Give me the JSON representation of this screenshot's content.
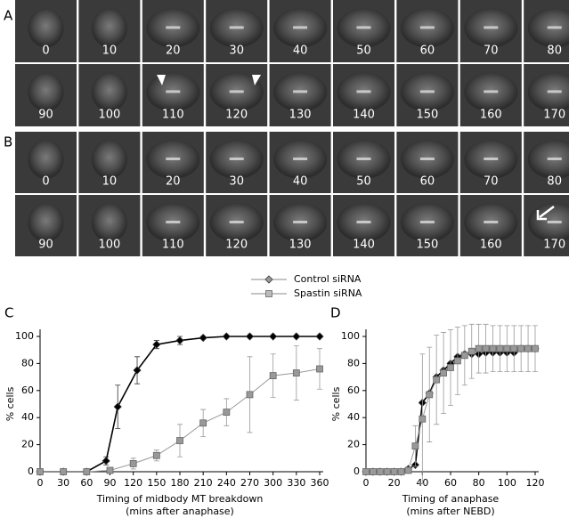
{
  "figure": {
    "panels": [
      {
        "label": "A",
        "rows": [
          [
            0,
            10,
            20,
            30,
            40,
            50,
            60,
            70,
            80
          ],
          [
            90,
            100,
            110,
            120,
            130,
            140,
            150,
            160,
            170
          ]
        ]
      },
      {
        "label": "B",
        "rows": [
          [
            0,
            10,
            20,
            30,
            40,
            50,
            60,
            70,
            80
          ],
          [
            90,
            100,
            110,
            120,
            130,
            140,
            150,
            160,
            170
          ]
        ]
      }
    ]
  },
  "chart_data": [
    {
      "type": "line",
      "panel_label": "C",
      "ylabel": "% cells",
      "xlabel": [
        "Timing of midbody MT breakdown",
        "(mins after anaphase)"
      ],
      "xlim": [
        0,
        360
      ],
      "xticks": [
        0,
        30,
        60,
        90,
        120,
        150,
        180,
        210,
        240,
        270,
        300,
        330,
        360
      ],
      "ylim": [
        0,
        100
      ],
      "yticks": [
        0,
        20,
        40,
        60,
        80,
        100
      ],
      "series": [
        {
          "name": "Control siRNA",
          "color": "#000000",
          "marker": "diamond",
          "x": [
            0,
            30,
            60,
            85,
            100,
            125,
            150,
            180,
            210,
            240,
            270,
            300,
            330,
            360
          ],
          "values": [
            0,
            0,
            0,
            8,
            48,
            75,
            94,
            97,
            99,
            100,
            100,
            100,
            100,
            100
          ],
          "errors": [
            0,
            0,
            0,
            3,
            16,
            10,
            3,
            3,
            1,
            0,
            0,
            0,
            0,
            0
          ]
        },
        {
          "name": "Spastin siRNA",
          "color": "#999999",
          "marker": "square",
          "x": [
            0,
            30,
            60,
            90,
            120,
            150,
            180,
            210,
            240,
            270,
            300,
            330,
            360
          ],
          "values": [
            0,
            0,
            0,
            1,
            6,
            12,
            23,
            36,
            44,
            57,
            71,
            73,
            76
          ],
          "errors": [
            0,
            0,
            0,
            1,
            4,
            4,
            12,
            10,
            10,
            28,
            16,
            20,
            15
          ]
        }
      ]
    },
    {
      "type": "line",
      "panel_label": "D",
      "ylabel": "% cells",
      "xlabel": [
        "Timing of anaphase",
        "(mins after NEBD)"
      ],
      "xlim": [
        0,
        120
      ],
      "xticks": [
        0,
        20,
        40,
        60,
        80,
        100,
        120
      ],
      "ylim": [
        0,
        100
      ],
      "yticks": [
        0,
        20,
        40,
        60,
        80,
        100
      ],
      "series": [
        {
          "name": "Control siRNA",
          "color": "#000000",
          "marker": "diamond",
          "x": [
            0,
            5,
            10,
            15,
            20,
            25,
            30,
            35,
            40,
            45,
            50,
            55,
            60,
            65,
            70,
            75,
            80,
            85,
            90,
            95,
            100,
            105,
            110,
            115,
            120
          ],
          "values": [
            0,
            0,
            0,
            0,
            0,
            0,
            2,
            5,
            51,
            58,
            70,
            75,
            80,
            85,
            87,
            87,
            87,
            88,
            88,
            88,
            88,
            88,
            91,
            91,
            91
          ]
        },
        {
          "name": "Spastin siRNA",
          "color": "#999999",
          "marker": "square",
          "x": [
            0,
            5,
            10,
            15,
            20,
            25,
            30,
            35,
            40,
            45,
            50,
            55,
            60,
            65,
            70,
            75,
            80,
            85,
            90,
            95,
            100,
            105,
            110,
            115,
            120
          ],
          "values": [
            0,
            0,
            0,
            0,
            0,
            0,
            1,
            19,
            39,
            57,
            68,
            73,
            77,
            82,
            86,
            89,
            91,
            91,
            91,
            91,
            91,
            91,
            91,
            91,
            91
          ],
          "errors": [
            0,
            0,
            0,
            0,
            0,
            0,
            1,
            15,
            48,
            35,
            33,
            30,
            28,
            25,
            22,
            20,
            18,
            18,
            17,
            17,
            17,
            17,
            17,
            17,
            17
          ]
        }
      ]
    }
  ]
}
